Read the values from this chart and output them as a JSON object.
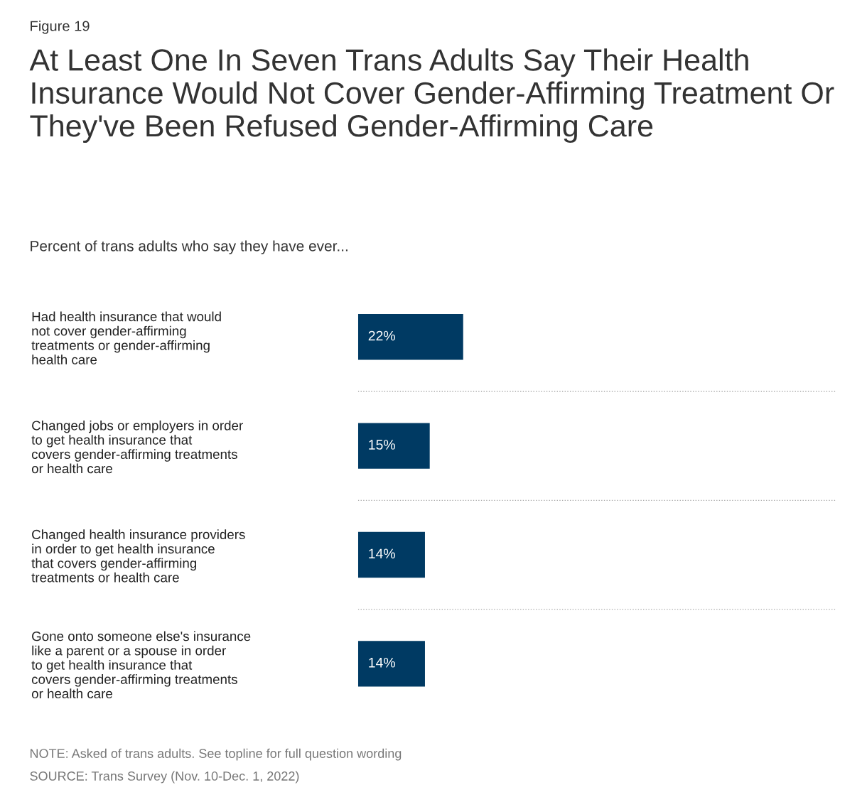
{
  "chart_data": {
    "type": "bar",
    "orientation": "horizontal",
    "title": "At Least One In Seven Trans Adults Say Their Health Insurance Would Not Cover Gender-Affirming Treatment Or They've Been Refused Gender-Affirming Care",
    "subtitle": "Percent of trans adults who say they have ever...",
    "categories": [
      "Had health insurance that would not cover gender-affirming treatments or gender-affirming health care",
      "Changed jobs or employers in order to get health insurance that covers gender-affirming treatments or health care",
      "Changed health insurance providers in order to get health insurance that covers gender-affirming treatments or health care",
      "Gone onto someone else's insurance like a parent or a spouse in order to get health insurance that covers gender-affirming treatments or health care"
    ],
    "values": [
      22,
      15,
      14,
      14
    ],
    "value_labels": [
      "22%",
      "15%",
      "14%",
      "14%"
    ],
    "color": "#003a63",
    "xlim": [
      0,
      100
    ],
    "tick_labels": "y",
    "grid": "y",
    "annotations": [
      "Figure 19",
      "NOTE: Asked of trans adults. See topline for full question wording",
      "SOURCE: Trans Survey (Nov. 10-Dec. 1, 2022)"
    ]
  }
}
